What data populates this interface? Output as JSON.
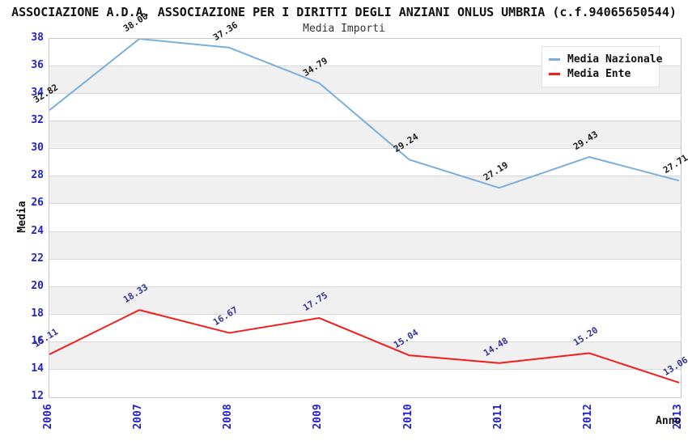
{
  "header": {
    "title": "ASSOCIAZIONE A.D.A. ASSOCIAZIONE PER I DIRITTI DEGLI ANZIANI ONLUS UMBRIA (c.f.94065650544)",
    "subtitle": "Media Importi"
  },
  "chart_data": {
    "type": "line",
    "title": "Media Importi",
    "xlabel": "Anno",
    "ylabel": "Media",
    "categories": [
      "2006",
      "2007",
      "2008",
      "2009",
      "2010",
      "2011",
      "2012",
      "2013"
    ],
    "series": [
      {
        "name": "Media Nazionale",
        "color": "#7aaede",
        "label_color": "#1a1a1a",
        "values": [
          32.82,
          38.0,
          37.36,
          34.79,
          29.24,
          27.19,
          29.43,
          27.71
        ]
      },
      {
        "name": "Media Ente",
        "color": "#f51b1b",
        "label_color": "#333399",
        "values": [
          15.11,
          18.33,
          16.67,
          17.75,
          15.04,
          14.48,
          15.2,
          13.06
        ]
      }
    ],
    "ylim": [
      12,
      38
    ],
    "yticks": [
      38,
      36,
      34,
      32,
      30,
      28,
      26,
      24,
      22,
      20,
      18,
      16,
      14,
      12
    ],
    "grid": "horizontal-bands",
    "band_color": "#f0f0f0",
    "axis_tick_color": "#2222cc",
    "legend_position": "top-right"
  }
}
